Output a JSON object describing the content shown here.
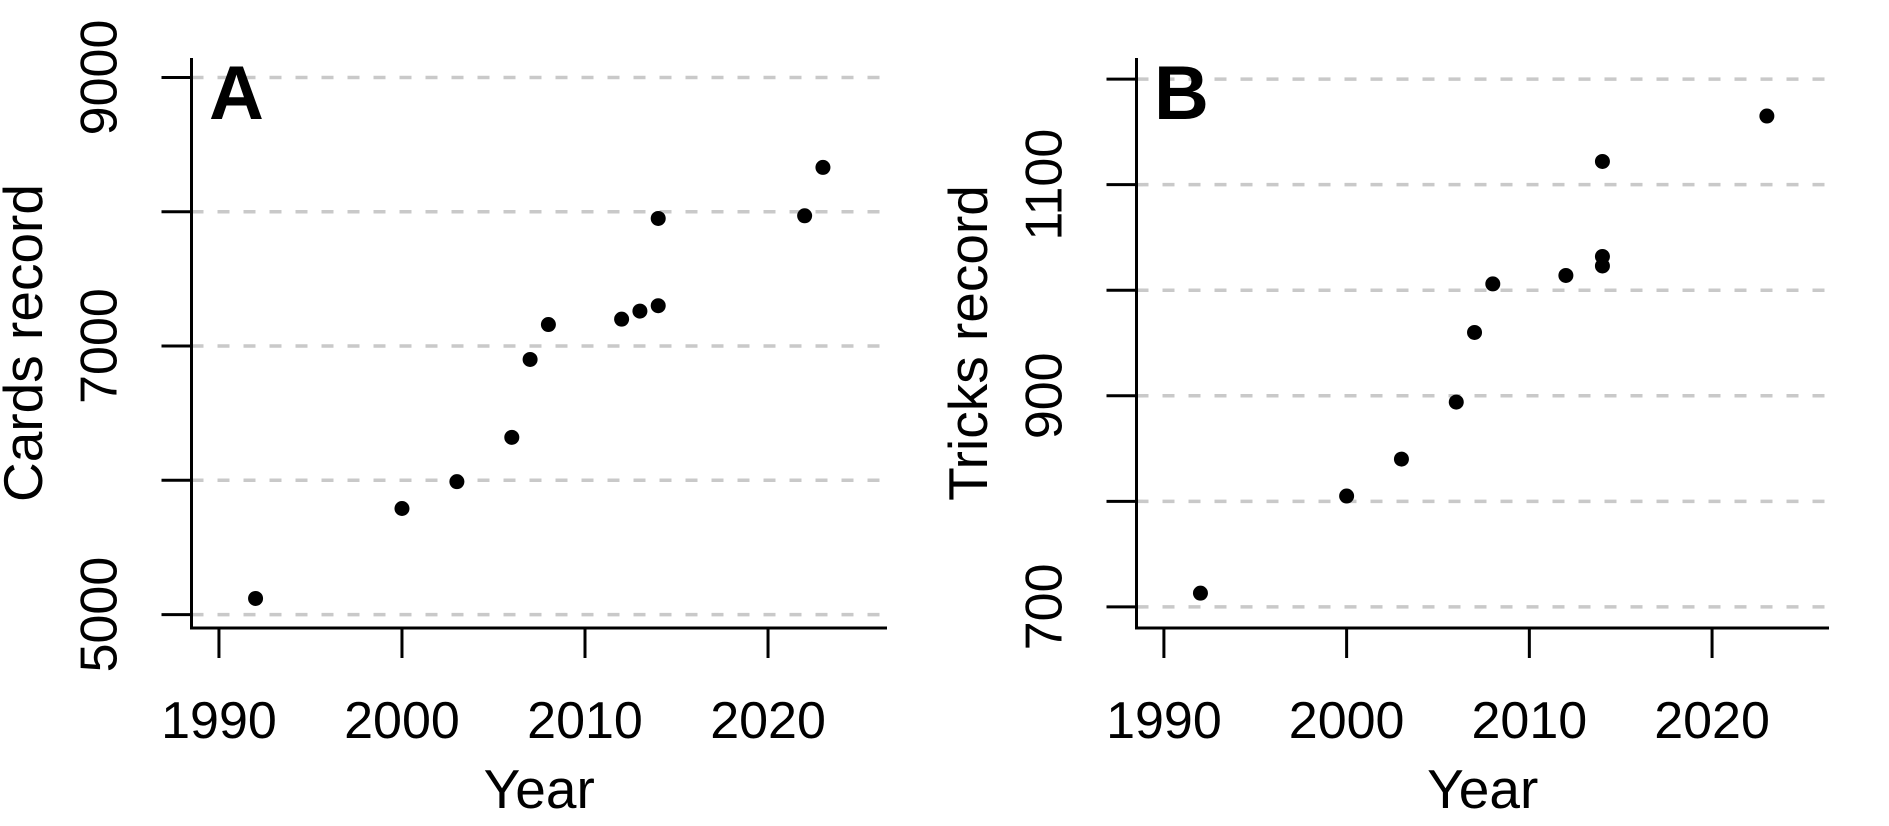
{
  "figure": {
    "background_color": "#ffffff",
    "point_color": "#000000",
    "gridline_color": "#c9c9c9",
    "axis_color": "#000000"
  },
  "chart_data": [
    {
      "type": "scatter",
      "panel_label": "A",
      "xlabel": "Year",
      "ylabel": "Cards record",
      "x_ticks": [
        1990,
        2000,
        2010,
        2020
      ],
      "y_gridlines": [
        5000,
        6000,
        7000,
        8000,
        9000
      ],
      "y_ticks_labeled": [
        5000,
        7000,
        9000
      ],
      "xlim": [
        1988.5,
        2026.5
      ],
      "ylim": [
        4900,
        9145
      ],
      "grid": "dashed-horizontal",
      "legend": "none",
      "points": [
        {
          "year": 1992,
          "value": 5120
        },
        {
          "year": 2000,
          "value": 5790
        },
        {
          "year": 2003,
          "value": 5990
        },
        {
          "year": 2006,
          "value": 6320
        },
        {
          "year": 2007,
          "value": 6900
        },
        {
          "year": 2008,
          "value": 7160
        },
        {
          "year": 2012,
          "value": 7200
        },
        {
          "year": 2013,
          "value": 7260
        },
        {
          "year": 2014,
          "value": 7300
        },
        {
          "year": 2014,
          "value": 7950
        },
        {
          "year": 2022,
          "value": 7970
        },
        {
          "year": 2023,
          "value": 8330
        }
      ]
    },
    {
      "type": "scatter",
      "panel_label": "B",
      "xlabel": "Year",
      "ylabel": "Tricks record",
      "x_ticks": [
        1990,
        2000,
        2010,
        2020
      ],
      "y_gridlines": [
        700,
        800,
        900,
        1000,
        1100,
        1200
      ],
      "y_ticks_labeled": [
        700,
        900,
        1100
      ],
      "xlim": [
        1988.5,
        2026.4
      ],
      "ylim": [
        680,
        1220
      ],
      "grid": "dashed-horizontal",
      "legend": "none",
      "points": [
        {
          "year": 1992,
          "value": 713
        },
        {
          "year": 2000,
          "value": 805
        },
        {
          "year": 2003,
          "value": 840
        },
        {
          "year": 2006,
          "value": 894
        },
        {
          "year": 2007,
          "value": 960
        },
        {
          "year": 2008,
          "value": 1006
        },
        {
          "year": 2012,
          "value": 1014
        },
        {
          "year": 2014,
          "value": 1023
        },
        {
          "year": 2014,
          "value": 1032
        },
        {
          "year": 2014,
          "value": 1122
        },
        {
          "year": 2023,
          "value": 1165
        }
      ]
    }
  ]
}
